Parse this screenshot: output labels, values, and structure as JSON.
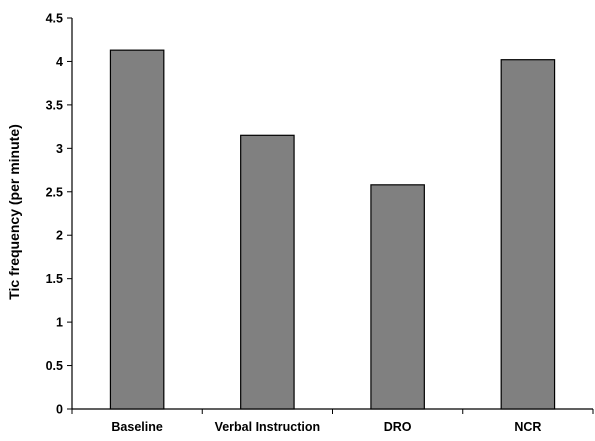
{
  "chart_data": {
    "type": "bar",
    "title": "",
    "xlabel": "",
    "ylabel": "Tic frequency (per minute)",
    "categories": [
      "Baseline",
      "Verbal Instruction",
      "DRO",
      "NCR"
    ],
    "values": [
      4.13,
      3.15,
      2.58,
      4.02
    ],
    "ylim": [
      0,
      4.5
    ],
    "yticks": [
      "0",
      "0.5",
      "1",
      "1.5",
      "2",
      "2.5",
      "3",
      "3.5",
      "4",
      "4.5"
    ],
    "grid": false,
    "legend": "none",
    "bar_color": "#808080",
    "bar_edge_color": "#000000"
  }
}
